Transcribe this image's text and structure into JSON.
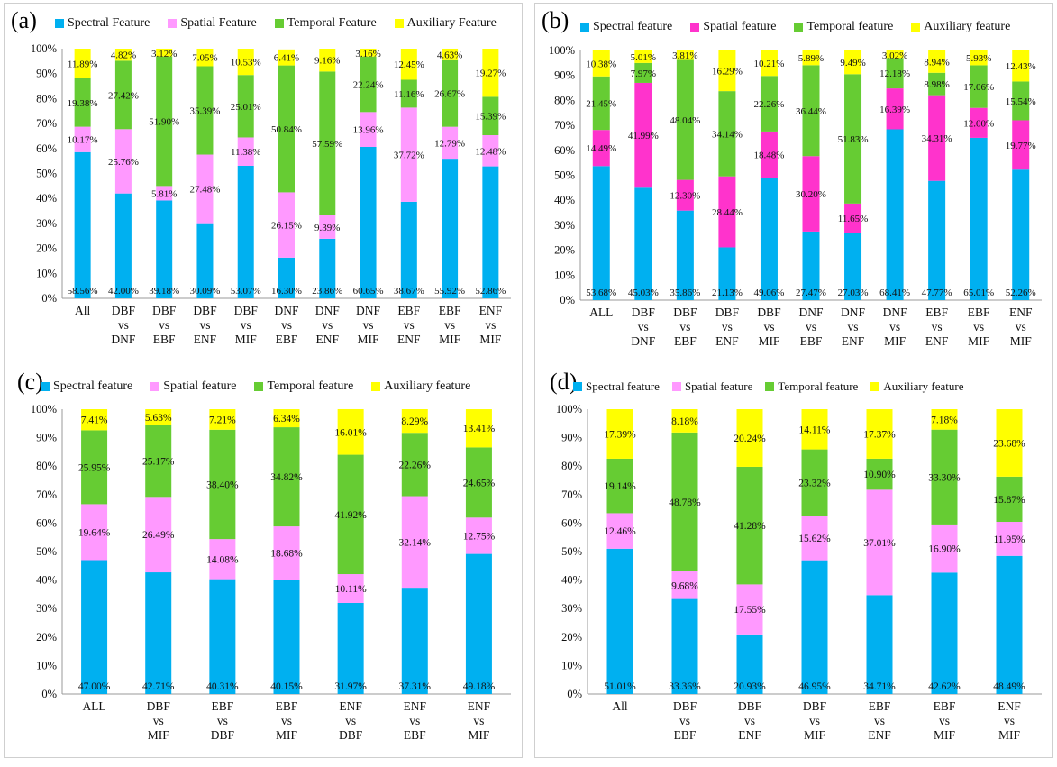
{
  "chart_data": [
    {
      "panel_label": "(a)",
      "type": "stacked_bar",
      "legend": [
        "Spectral Feature",
        "Spatial Feature",
        "Temporal Feature",
        "Auxiliary Feature"
      ],
      "yticks": [
        "0%",
        "10%",
        "20%",
        "30%",
        "40%",
        "50%",
        "60%",
        "70%",
        "80%",
        "90%",
        "100%"
      ],
      "ylim": [
        0,
        100
      ],
      "categories": [
        [
          "All"
        ],
        [
          "DBF",
          "vs",
          "DNF"
        ],
        [
          "DBF",
          "vs",
          "EBF"
        ],
        [
          "DBF",
          "vs",
          "ENF"
        ],
        [
          "DBF",
          "vs",
          "MIF"
        ],
        [
          "DNF",
          "vs",
          "EBF"
        ],
        [
          "DNF",
          "vs",
          "ENF"
        ],
        [
          "DNF",
          "vs",
          "MIF"
        ],
        [
          "EBF",
          "vs",
          "ENF"
        ],
        [
          "EBF",
          "vs",
          "MIF"
        ],
        [
          "ENF",
          "vs",
          "MIF"
        ]
      ],
      "series": [
        {
          "name": "Spectral Feature",
          "color": "#00B0F0",
          "values": [
            58.56,
            42.0,
            39.18,
            30.09,
            53.07,
            16.3,
            23.86,
            60.65,
            38.67,
            55.92,
            52.86
          ],
          "labels": [
            "58.56%",
            "42.00%",
            "39.18%",
            "30.09%",
            "53.07%",
            "16.30%",
            "23.86%",
            "60.65%",
            "38.67%",
            "55.92%",
            "52.86%"
          ]
        },
        {
          "name": "Spatial Feature",
          "color": "#FF99FF",
          "values": [
            10.17,
            25.76,
            5.81,
            27.48,
            11.38,
            26.15,
            9.39,
            13.96,
            37.72,
            12.79,
            12.48
          ],
          "labels": [
            "10.17%",
            "25.76%",
            "5.81%",
            "27.48%",
            "11.38%",
            "26.15%",
            "9.39%",
            "13.96%",
            "37.72%",
            "12.79%",
            "12.48%"
          ]
        },
        {
          "name": "Temporal Feature",
          "color": "#66CC33",
          "values": [
            19.38,
            27.42,
            51.9,
            35.39,
            25.01,
            50.84,
            57.59,
            22.24,
            11.16,
            26.67,
            15.39
          ],
          "labels": [
            "19.38%",
            "27.42%",
            "51.90%",
            "35.39%",
            "25.01%",
            "50.84%",
            "57.59%",
            "22.24%",
            "11.16%",
            "26.67%",
            "15.39%"
          ]
        },
        {
          "name": "Auxiliary Feature",
          "color": "#FFFF00",
          "values": [
            11.89,
            4.82,
            3.12,
            7.05,
            10.53,
            6.41,
            9.16,
            3.16,
            12.45,
            4.63,
            19.27
          ],
          "labels": [
            "11.89%",
            "4.82%",
            "3.12%",
            "7.05%",
            "10.53%",
            "6.41%",
            "9.16%",
            "3.16%",
            "12.45%",
            "4.63%",
            "19.27%"
          ]
        }
      ]
    },
    {
      "panel_label": "(b)",
      "type": "stacked_bar",
      "legend": [
        "Spectral feature",
        "Spatial feature",
        "Temporal feature",
        "Auxiliary feature"
      ],
      "yticks": [
        "0%",
        "10%",
        "20%",
        "30%",
        "40%",
        "50%",
        "60%",
        "70%",
        "80%",
        "90%",
        "100%"
      ],
      "ylim": [
        0,
        100
      ],
      "categories": [
        [
          "ALL"
        ],
        [
          "DBF",
          "vs",
          "DNF"
        ],
        [
          "DBF",
          "vs",
          "EBF"
        ],
        [
          "DBF",
          "vs",
          "ENF"
        ],
        [
          "DBF",
          "vs",
          "MIF"
        ],
        [
          "DNF",
          "vs",
          "EBF"
        ],
        [
          "DNF",
          "vs",
          "ENF"
        ],
        [
          "DNF",
          "vs",
          "MIF"
        ],
        [
          "EBF",
          "vs",
          "ENF"
        ],
        [
          "EBF",
          "vs",
          "MIF"
        ],
        [
          "ENF",
          "vs",
          "MIF"
        ]
      ],
      "series": [
        {
          "name": "Spectral feature",
          "color": "#00B0F0",
          "values": [
            53.68,
            45.03,
            35.86,
            21.13,
            49.06,
            27.47,
            27.03,
            68.41,
            47.77,
            65.01,
            52.26
          ],
          "labels": [
            "53.68%",
            "45.03%",
            "35.86%",
            "21.13%",
            "49.06%",
            "27.47%",
            "27.03%",
            "68.41%",
            "47.77%",
            "65.01%",
            "52.26%"
          ]
        },
        {
          "name": "Spatial feature",
          "color": "#FF33CC",
          "values": [
            14.49,
            41.99,
            12.3,
            28.44,
            18.48,
            30.2,
            11.65,
            16.39,
            34.31,
            12.0,
            19.77
          ],
          "labels": [
            "14.49%",
            "41.99%",
            "12.30%",
            "28.44%",
            "18.48%",
            "30.20%",
            "11.65%",
            "16.39%",
            "34.31%",
            "12.00%",
            "19.77%"
          ]
        },
        {
          "name": "Temporal feature",
          "color": "#66CC33",
          "values": [
            21.45,
            7.97,
            48.04,
            34.14,
            22.26,
            36.44,
            51.83,
            12.18,
            8.98,
            17.06,
            15.54
          ],
          "labels": [
            "21.45%",
            "7.97%",
            "48.04%",
            "34.14%",
            "22.26%",
            "36.44%",
            "51.83%",
            "12.18%",
            "8.98%",
            "17.06%",
            "15.54%"
          ]
        },
        {
          "name": "Auxiliary feature",
          "color": "#FFFF00",
          "values": [
            10.38,
            5.01,
            3.81,
            16.29,
            10.21,
            5.89,
            9.49,
            3.02,
            8.94,
            5.93,
            12.43
          ],
          "labels": [
            "10.38%",
            "5.01%",
            "3.81%",
            "16.29%",
            "10.21%",
            "5.89%",
            "9.49%",
            "3.02%",
            "8.94%",
            "5.93%",
            "12.43%"
          ]
        }
      ]
    },
    {
      "panel_label": "(c)",
      "type": "stacked_bar",
      "legend": [
        "Spectral feature",
        "Spatial feature",
        "Temporal feature",
        "Auxiliary feature"
      ],
      "yticks": [
        "0%",
        "10%",
        "20%",
        "30%",
        "40%",
        "50%",
        "60%",
        "70%",
        "80%",
        "90%",
        "100%"
      ],
      "ylim": [
        0,
        100
      ],
      "categories": [
        [
          "ALL"
        ],
        [
          "DBF",
          "vs",
          "MIF"
        ],
        [
          "EBF",
          "vs",
          "DBF"
        ],
        [
          "EBF",
          "vs",
          "MIF"
        ],
        [
          "ENF",
          "vs",
          "DBF"
        ],
        [
          "ENF",
          "vs",
          "EBF"
        ],
        [
          "ENF",
          "vs",
          "MIF"
        ]
      ],
      "series": [
        {
          "name": "Spectral feature",
          "color": "#00B0F0",
          "values": [
            47.0,
            42.71,
            40.31,
            40.15,
            31.97,
            37.31,
            49.18
          ],
          "labels": [
            "47.00%",
            "42.71%",
            "40.31%",
            "40.15%",
            "31.97%",
            "37.31%",
            "49.18%"
          ]
        },
        {
          "name": "Spatial feature",
          "color": "#FF99FF",
          "values": [
            19.64,
            26.49,
            14.08,
            18.68,
            10.11,
            32.14,
            12.75
          ],
          "labels": [
            "19.64%",
            "26.49%",
            "14.08%",
            "18.68%",
            "10.11%",
            "32.14%",
            "12.75%"
          ]
        },
        {
          "name": "Temporal feature",
          "color": "#66CC33",
          "values": [
            25.95,
            25.17,
            38.4,
            34.82,
            41.92,
            22.26,
            24.65
          ],
          "labels": [
            "25.95%",
            "25.17%",
            "38.40%",
            "34.82%",
            "41.92%",
            "22.26%",
            "24.65%"
          ]
        },
        {
          "name": "Auxiliary feature",
          "color": "#FFFF00",
          "values": [
            7.41,
            5.63,
            7.21,
            6.34,
            16.01,
            8.29,
            13.41
          ],
          "labels": [
            "7.41%",
            "5.63%",
            "7.21%",
            "6.34%",
            "16.01%",
            "8.29%",
            "13.41%"
          ]
        }
      ]
    },
    {
      "panel_label": "(d)",
      "type": "stacked_bar",
      "legend": [
        "Spectral feature",
        "Spatial feature",
        "Temporal feature",
        "Auxiliary feature"
      ],
      "yticks": [
        "0%",
        "10%",
        "20%",
        "30%",
        "40%",
        "50%",
        "60%",
        "70%",
        "80%",
        "90%",
        "100%"
      ],
      "ylim": [
        0,
        100
      ],
      "categories": [
        [
          "All"
        ],
        [
          "DBF",
          "vs",
          "EBF"
        ],
        [
          "DBF",
          "vs",
          "ENF"
        ],
        [
          "DBF",
          "vs",
          "MIF"
        ],
        [
          "EBF",
          "vs",
          "ENF"
        ],
        [
          "EBF",
          "vs",
          "MIF"
        ],
        [
          "ENF",
          "vs",
          "MIF"
        ]
      ],
      "series": [
        {
          "name": "Spectral feature",
          "color": "#00B0F0",
          "values": [
            51.01,
            33.36,
            20.93,
            46.95,
            34.71,
            42.62,
            48.49
          ],
          "labels": [
            "51.01%",
            "33.36%",
            "20.93%",
            "46.95%",
            "34.71%",
            "42.62%",
            "48.49%"
          ]
        },
        {
          "name": "Spatial feature",
          "color": "#FF99FF",
          "values": [
            12.46,
            9.68,
            17.55,
            15.62,
            37.01,
            16.9,
            11.95
          ],
          "labels": [
            "12.46%",
            "9.68%",
            "17.55%",
            "15.62%",
            "37.01%",
            "16.90%",
            "11.95%"
          ]
        },
        {
          "name": "Temporal feature",
          "color": "#66CC33",
          "values": [
            19.14,
            48.78,
            41.28,
            23.32,
            10.9,
            33.3,
            15.87
          ],
          "labels": [
            "19.14%",
            "48.78%",
            "41.28%",
            "23.32%",
            "10.90%",
            "33.30%",
            "15.87%"
          ]
        },
        {
          "name": "Auxiliary feature",
          "color": "#FFFF00",
          "values": [
            17.39,
            8.18,
            20.24,
            14.11,
            17.37,
            7.18,
            23.68
          ],
          "labels": [
            "17.39%",
            "8.18%",
            "20.24%",
            "14.11%",
            "17.37%",
            "7.18%",
            "23.68%"
          ]
        }
      ]
    }
  ]
}
